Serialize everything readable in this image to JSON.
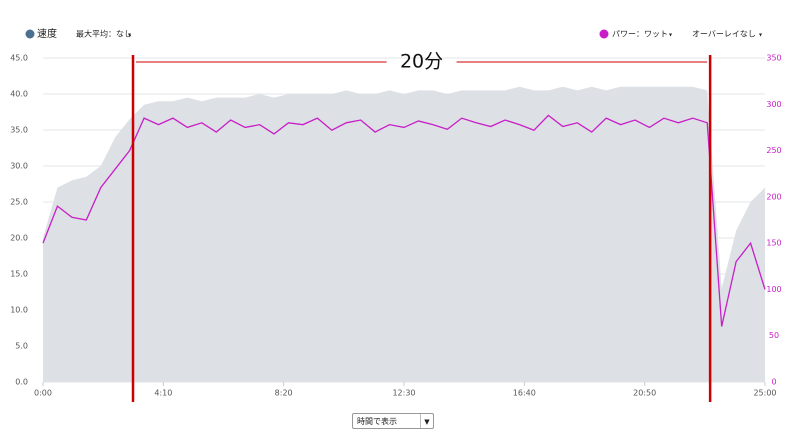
{
  "chart_data": {
    "type": "area-line",
    "legend": {
      "speed": "速度",
      "max_avg": "最大平均：なし",
      "power": "パワー：ワット",
      "overlay": "オーバーレイなし"
    },
    "annotation": {
      "label": "20分",
      "start": 187,
      "end": 1386,
      "color": "#cc0000"
    },
    "x": [
      0,
      30,
      60,
      90,
      120,
      150,
      180,
      210,
      240,
      270,
      300,
      330,
      360,
      390,
      420,
      450,
      480,
      510,
      540,
      570,
      600,
      630,
      660,
      690,
      720,
      750,
      780,
      810,
      840,
      870,
      900,
      930,
      960,
      990,
      1020,
      1050,
      1080,
      1110,
      1140,
      1170,
      1200,
      1230,
      1260,
      1290,
      1320,
      1350,
      1380,
      1410,
      1440,
      1470,
      1500
    ],
    "series": [
      {
        "name": "速度",
        "color": "#4a6f8f",
        "fill": "#dde0e4",
        "values": [
          20,
          27,
          28,
          28.5,
          30,
          34,
          36.5,
          38.5,
          39,
          39,
          39.5,
          39,
          39.5,
          39.5,
          39.5,
          40,
          39.5,
          40,
          40,
          40,
          40,
          40.5,
          40,
          40,
          40.5,
          40,
          40.5,
          40.5,
          40,
          40.5,
          40.5,
          40.5,
          40.5,
          41,
          40.5,
          40.5,
          41,
          40.5,
          41,
          40.5,
          41,
          41,
          41,
          41,
          41,
          41,
          40.5,
          13,
          21,
          25,
          27
        ]
      },
      {
        "name": "パワー：ワット",
        "color": "#c81ec8",
        "axis": "y2",
        "values": [
          150,
          190,
          178,
          175,
          210,
          230,
          250,
          285,
          278,
          285,
          275,
          280,
          270,
          283,
          275,
          278,
          268,
          280,
          278,
          285,
          272,
          280,
          283,
          270,
          278,
          275,
          282,
          278,
          273,
          285,
          280,
          276,
          283,
          278,
          272,
          288,
          276,
          280,
          270,
          285,
          278,
          283,
          275,
          285,
          280,
          285,
          280,
          60,
          130,
          150,
          100
        ]
      }
    ],
    "xlim": [
      0,
      1500
    ],
    "xticks": [
      {
        "value": 0,
        "label": "0:00"
      },
      {
        "value": 250,
        "label": "4:10"
      },
      {
        "value": 500,
        "label": "8:20"
      },
      {
        "value": 750,
        "label": "12:30"
      },
      {
        "value": 1000,
        "label": "16:40"
      },
      {
        "value": 1250,
        "label": "20:50"
      },
      {
        "value": 1500,
        "label": "25:00"
      }
    ],
    "ylim": [
      0,
      45
    ],
    "yticks": [
      {
        "value": 0,
        "label": "0.0"
      },
      {
        "value": 5,
        "label": "5.0"
      },
      {
        "value": 10,
        "label": "10.0"
      },
      {
        "value": 15,
        "label": "15.0"
      },
      {
        "value": 20,
        "label": "20.0"
      },
      {
        "value": 25,
        "label": "25.0"
      },
      {
        "value": 30,
        "label": "30.0"
      },
      {
        "value": 35,
        "label": "35.0"
      },
      {
        "value": 40,
        "label": "40.0"
      },
      {
        "value": 45,
        "label": "45.0"
      }
    ],
    "y2lim": [
      0,
      350
    ],
    "y2ticks": [
      0,
      50,
      100,
      150,
      200,
      250,
      300,
      350
    ],
    "grid": true,
    "view_select": "時間で表示"
  }
}
